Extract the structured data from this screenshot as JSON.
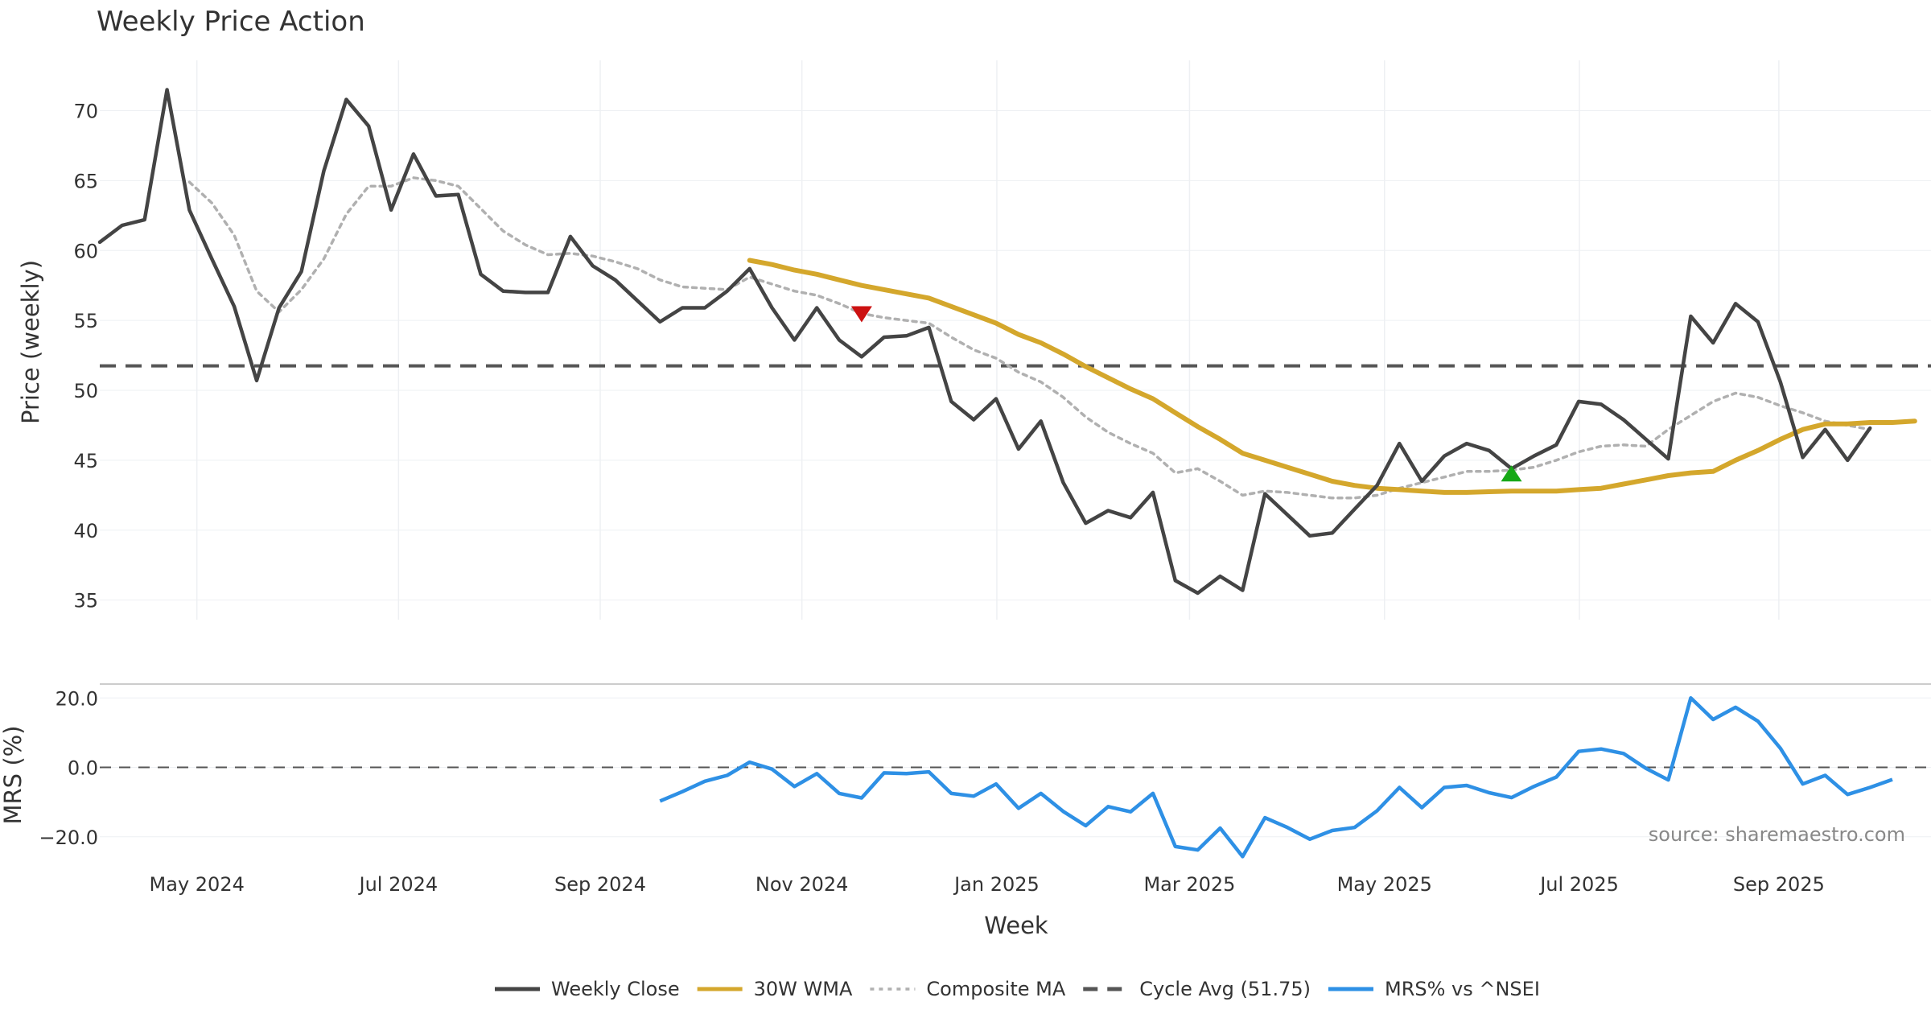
{
  "colors": {
    "close": "#444444",
    "wma": "#d4a72c",
    "composite": "#b0b0b0",
    "cycle": "#555555",
    "mrs": "#2e90e5",
    "buy": "#17a817",
    "sell": "#cc1111",
    "grid": "#eef0f3"
  },
  "chart_data": {
    "type": "line",
    "title": "Weekly Price Action",
    "xlabel": "Week",
    "source": "source: sharemaestro.com",
    "weeks": [
      "2024-04-19",
      "2024-04-26",
      "2024-05-03",
      "2024-05-10",
      "2024-05-17",
      "2024-05-24",
      "2024-05-31",
      "2024-06-07",
      "2024-06-14",
      "2024-06-21",
      "2024-06-28",
      "2024-07-05",
      "2024-07-12",
      "2024-07-19",
      "2024-07-26",
      "2024-08-02",
      "2024-08-09",
      "2024-08-16",
      "2024-08-23",
      "2024-08-30",
      "2024-09-06",
      "2024-09-13",
      "2024-09-20",
      "2024-09-27",
      "2024-10-04",
      "2024-10-11",
      "2024-10-18",
      "2024-10-25",
      "2024-11-01",
      "2024-11-08",
      "2024-11-15",
      "2024-11-22",
      "2024-11-29",
      "2024-12-06",
      "2024-12-13",
      "2024-12-20",
      "2024-12-27",
      "2025-01-03",
      "2025-01-10",
      "2025-01-17",
      "2025-01-24",
      "2025-01-31",
      "2025-02-07",
      "2025-02-14",
      "2025-02-21",
      "2025-02-28",
      "2025-03-07",
      "2025-03-14",
      "2025-03-21",
      "2025-03-28",
      "2025-04-04",
      "2025-04-11",
      "2025-04-18",
      "2025-04-25",
      "2025-05-02",
      "2025-05-09",
      "2025-05-16",
      "2025-05-23",
      "2025-05-30",
      "2025-06-06",
      "2025-06-13",
      "2025-06-20",
      "2025-06-27",
      "2025-07-04",
      "2025-07-11",
      "2025-07-18",
      "2025-07-25",
      "2025-08-01",
      "2025-08-08",
      "2025-08-15",
      "2025-08-22",
      "2025-08-29",
      "2025-09-05",
      "2025-09-12",
      "2025-09-19",
      "2025-09-26",
      "2025-10-03",
      "2025-10-10",
      "2025-10-17",
      "2025-10-24"
    ],
    "price_panel": {
      "ylabel": "Price (weekly)",
      "yticks": [
        35,
        40,
        45,
        50,
        55,
        60,
        65,
        70
      ],
      "ylim": [
        33.6,
        73.6
      ],
      "cycle_avg": 51.75,
      "series": [
        {
          "name": "Weekly Close",
          "start": 0,
          "values": [
            60.6,
            61.8,
            62.2,
            71.5,
            62.9,
            59.4,
            56.0,
            50.7,
            55.9,
            58.5,
            65.7,
            70.8,
            68.9,
            62.9,
            66.9,
            63.9,
            64.0,
            58.3,
            57.1,
            57.0,
            57.0,
            61.0,
            58.9,
            57.9,
            56.4,
            54.9,
            55.9,
            55.9,
            57.1,
            58.7,
            55.9,
            53.6,
            55.9,
            53.6,
            52.4,
            53.8,
            53.9,
            54.5,
            49.2,
            47.9,
            49.4,
            45.8,
            47.8,
            43.4,
            40.5,
            41.4,
            40.9,
            42.7,
            36.4,
            35.5,
            36.7,
            35.7,
            42.6,
            41.1,
            39.6,
            39.8,
            41.5,
            43.2,
            46.2,
            43.5,
            45.3,
            46.2,
            45.7,
            44.4,
            45.3,
            46.1,
            49.2,
            49.0,
            47.9,
            46.5,
            45.1,
            55.3,
            53.4,
            56.2,
            54.9,
            50.6,
            45.2,
            47.2,
            45.0,
            47.3
          ]
        },
        {
          "name": "30W WMA",
          "start": 29,
          "values": [
            59.3,
            59.0,
            58.6,
            58.3,
            57.9,
            57.5,
            57.2,
            56.9,
            56.6,
            56.0,
            55.4,
            54.8,
            54.0,
            53.4,
            52.6,
            51.7,
            50.9,
            50.1,
            49.4,
            48.4,
            47.4,
            46.5,
            45.5,
            45.0,
            44.5,
            44.0,
            43.5,
            43.2,
            43.0,
            42.9,
            42.8,
            42.7,
            42.7,
            42.75,
            42.8,
            42.8,
            42.8,
            42.9,
            43.0,
            43.3,
            43.6,
            43.9,
            44.1,
            44.2,
            45.0,
            45.7,
            46.5,
            47.2,
            47.6,
            47.6,
            47.7,
            47.7,
            47.8
          ]
        },
        {
          "name": "Composite MA",
          "start": 4,
          "values": [
            64.9,
            63.4,
            61.1,
            57.1,
            55.6,
            57.2,
            59.4,
            62.6,
            64.6,
            64.6,
            65.2,
            65.0,
            64.6,
            63.0,
            61.4,
            60.4,
            59.7,
            59.8,
            59.6,
            59.2,
            58.7,
            57.9,
            57.4,
            57.3,
            57.2,
            58.1,
            57.6,
            57.1,
            56.8,
            56.2,
            55.5,
            55.2,
            55.0,
            54.8,
            53.8,
            52.9,
            52.3,
            51.3,
            50.6,
            49.5,
            48.1,
            47.0,
            46.2,
            45.5,
            44.1,
            44.4,
            43.5,
            42.5,
            42.8,
            42.7,
            42.5,
            42.3,
            42.3,
            42.5,
            43.0,
            43.4,
            43.8,
            44.2,
            44.2,
            44.3,
            44.5,
            45.0,
            45.6,
            46.0,
            46.1,
            46.0,
            47.2,
            48.2,
            49.2,
            49.8,
            49.5,
            48.9,
            48.4,
            47.8,
            47.5,
            47.2
          ]
        }
      ],
      "signals": [
        {
          "type": "sell",
          "week_index": 34,
          "value": 55.5
        },
        {
          "type": "buy",
          "week_index": 63,
          "value": 44.0
        }
      ]
    },
    "mrs_panel": {
      "ylabel": "MRS (%)",
      "yticks": [
        -20.0,
        0.0,
        20.0
      ],
      "ytick_labels": [
        "−20.0",
        "0.0",
        "20.0"
      ],
      "ylim": [
        -27.0,
        24.0
      ],
      "zero_line": 0,
      "series": [
        {
          "name": "MRS% vs ^NSEI",
          "start": 25,
          "values": [
            -9.7,
            -7.0,
            -4.0,
            -2.3,
            1.5,
            -0.5,
            -5.5,
            -1.8,
            -7.5,
            -8.8,
            -1.6,
            -1.8,
            -1.3,
            -7.5,
            -8.3,
            -4.8,
            -11.8,
            -7.5,
            -12.7,
            -16.8,
            -11.3,
            -12.8,
            -7.5,
            -22.8,
            -23.8,
            -17.5,
            -25.7,
            -14.5,
            -17.3,
            -20.7,
            -18.2,
            -17.3,
            -12.5,
            -5.8,
            -11.6,
            -5.8,
            -5.2,
            -7.3,
            -8.7,
            -5.5,
            -2.8,
            4.6,
            5.3,
            4.0,
            -0.3,
            -3.6,
            20.0,
            13.8,
            17.3,
            13.3,
            5.5,
            -4.8,
            -2.3,
            -7.8,
            -5.8,
            -3.5
          ]
        }
      ]
    },
    "xticks": [
      {
        "label": "May 2024",
        "week_index": 2
      },
      {
        "label": "Jul 2024",
        "week_index": 11
      },
      {
        "label": "Sep 2024",
        "week_index": 20
      },
      {
        "label": "Nov 2024",
        "week_index": 29
      },
      {
        "label": "Jan 2025",
        "week_index": 37.7
      },
      {
        "label": "Mar 2025",
        "week_index": 46.3
      },
      {
        "label": "May 2025",
        "week_index": 55
      },
      {
        "label": "Jul 2025",
        "week_index": 63.7
      },
      {
        "label": "Sep 2025",
        "week_index": 72.6
      }
    ],
    "legend": [
      {
        "label": "Weekly Close",
        "style": "solid",
        "color_key": "close"
      },
      {
        "label": "30W WMA",
        "style": "solid",
        "color_key": "wma"
      },
      {
        "label": "Composite MA",
        "style": "dotted",
        "color_key": "composite"
      },
      {
        "label": "Cycle Avg (51.75)",
        "style": "dashed",
        "color_key": "cycle"
      },
      {
        "label": "MRS% vs ^NSEI",
        "style": "solid",
        "color_key": "mrs"
      }
    ]
  }
}
